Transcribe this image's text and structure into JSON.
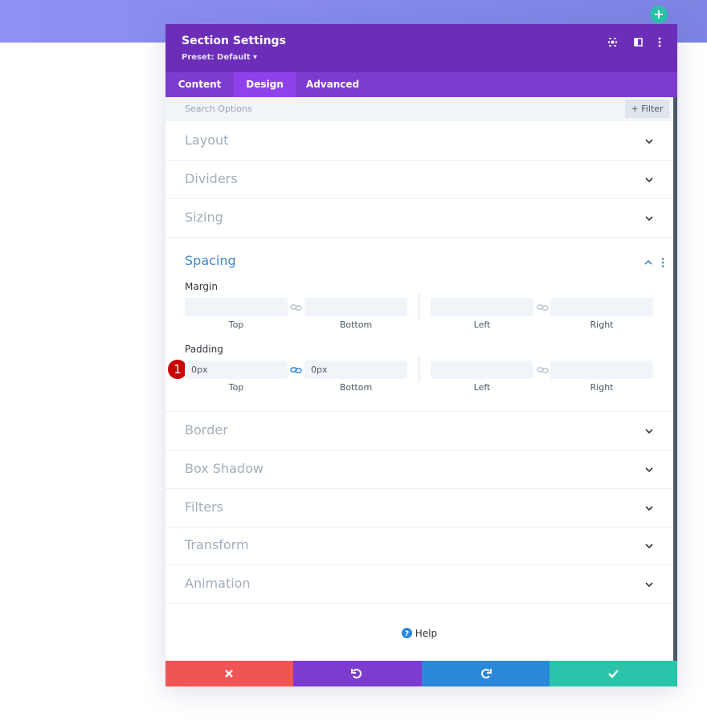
{
  "header": {
    "title": "Section Settings",
    "preset": "Preset: Default"
  },
  "tabs": [
    "Content",
    "Design",
    "Advanced"
  ],
  "search": {
    "placeholder": "Search Options",
    "filter": "Filter"
  },
  "sections_before": [
    "Layout",
    "Dividers",
    "Sizing"
  ],
  "spacing": {
    "title": "Spacing",
    "margin": {
      "label": "Margin",
      "fields": [
        "Top",
        "Bottom",
        "Left",
        "Right"
      ]
    },
    "padding": {
      "label": "Padding",
      "values": [
        "0px",
        "0px"
      ],
      "fields": [
        "Top",
        "Bottom",
        "Left",
        "Right"
      ]
    }
  },
  "sections_after": [
    "Border",
    "Box Shadow",
    "Filters",
    "Transform",
    "Animation"
  ],
  "badge": "1",
  "help": "Help"
}
